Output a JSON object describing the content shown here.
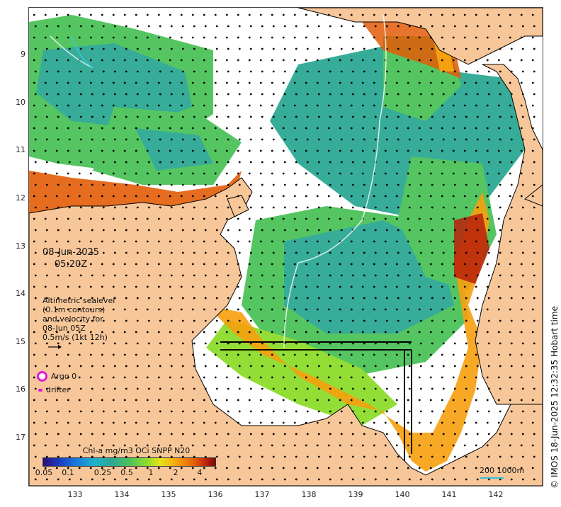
{
  "map": {
    "date": "08-Jun-2025",
    "time": "05:20Z",
    "lat_ticks": [
      "9",
      "10",
      "11",
      "12",
      "13",
      "14",
      "15",
      "16",
      "17"
    ],
    "lon_ticks": [
      "133",
      "134",
      "135",
      "136",
      "137",
      "138",
      "139",
      "140",
      "141",
      "142"
    ]
  },
  "altimetry": {
    "line1": "Altimetric sealevel",
    "line2": "(0.1m contours)",
    "line3": "and velocity for",
    "line4": "08-Jun 05Z",
    "line5": "0.5m/s (1kt 12h)"
  },
  "legend": {
    "argo_label": "Argo 0",
    "drifter_label": "drifter"
  },
  "colorbar": {
    "title": "Chl-a mg/m3 OCi SNPP N20",
    "ticks": [
      "0.05",
      "0.1",
      "0.25",
      "0.5",
      "1",
      "2",
      "4"
    ]
  },
  "scale": {
    "label": "200  1000m"
  },
  "credit": "© IMOS 18-Jun-2025 12:32:35 Hobart time",
  "colors": {
    "land": "#f7c79a",
    "coast_high": "#e35c08",
    "teal": "#2ca894",
    "green": "#4cc25a",
    "argo": "#e01ad8"
  }
}
